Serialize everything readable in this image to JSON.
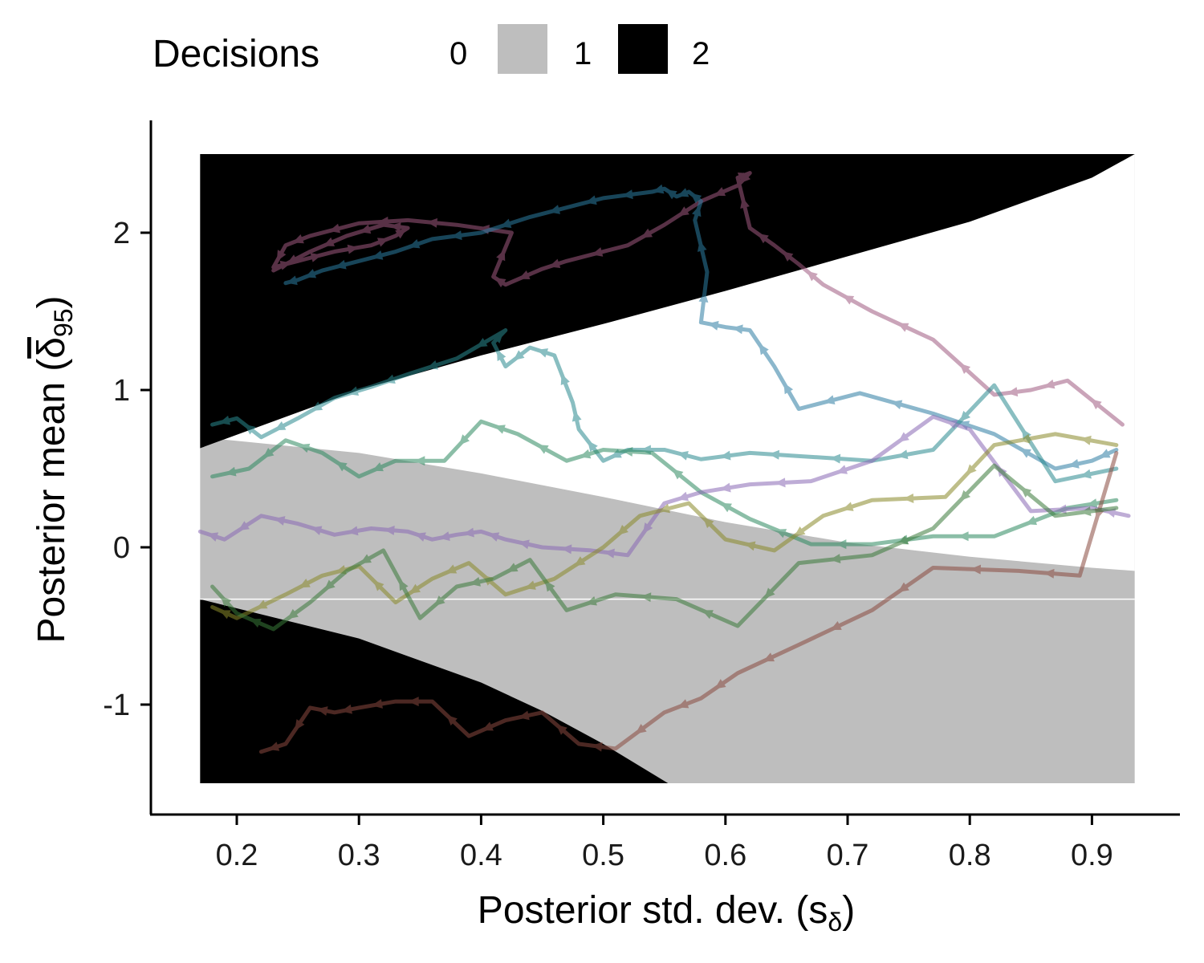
{
  "chart_data": {
    "type": "line",
    "title": "",
    "xlabel": "Posterior std. dev. (s",
    "xlabel_sub": "δ",
    "xlabel_close": ")",
    "ylabel": "Posterior mean (",
    "ylabel_sym": "δ",
    "ylabel_sub": "95",
    "ylabel_close": ")",
    "xlim": [
      0.13,
      0.97
    ],
    "ylim": [
      -1.7,
      2.7
    ],
    "xticks": [
      0.2,
      0.3,
      0.4,
      0.5,
      0.6,
      0.7,
      0.8,
      0.9
    ],
    "xtick_labels": [
      "0.2",
      "0.3",
      "0.4",
      "0.5",
      "0.6",
      "0.7",
      "0.8",
      "0.9"
    ],
    "yticks": [
      -1,
      0,
      1,
      2
    ],
    "ytick_labels": [
      "-1",
      "0",
      "1",
      "2"
    ],
    "legend": {
      "title": "Decisions",
      "placement": "top",
      "entries": [
        {
          "label": "0",
          "color": "#ffffff"
        },
        {
          "label": "1",
          "color": "#bebebe"
        },
        {
          "label": "2",
          "color": "#000000"
        }
      ]
    },
    "decision_regions": {
      "x_range": [
        0.17,
        0.935
      ],
      "y_range": [
        -1.5,
        2.5
      ],
      "upper_boundary": {
        "x": [
          0.17,
          0.3,
          0.4,
          0.5,
          0.6,
          0.7,
          0.8,
          0.9,
          0.935
        ],
        "y": [
          0.63,
          1.0,
          1.22,
          1.42,
          1.63,
          1.85,
          2.07,
          2.35,
          2.5
        ]
      },
      "mid_boundary": {
        "x": [
          0.17,
          0.3,
          0.4,
          0.5,
          0.6,
          0.7,
          0.8,
          0.9,
          0.935
        ],
        "y": [
          0.7,
          0.6,
          0.47,
          0.32,
          0.16,
          0.03,
          -0.06,
          -0.13,
          -0.15
        ]
      },
      "lower_boundary": {
        "x": [
          0.17,
          0.3,
          0.4,
          0.45,
          0.5,
          0.553
        ],
        "y": [
          -0.33,
          -0.58,
          -0.86,
          -1.04,
          -1.25,
          -1.5
        ]
      },
      "thin_line_y": -0.33
    },
    "series": [
      {
        "name": "trajectory-mauve",
        "color": "#a05a80",
        "x": [
          0.925,
          0.88,
          0.85,
          0.82,
          0.77,
          0.72,
          0.68,
          0.66,
          0.64,
          0.62,
          0.61,
          0.62,
          0.61,
          0.58,
          0.55,
          0.52,
          0.47,
          0.45,
          0.42,
          0.41,
          0.425,
          0.38,
          0.34,
          0.3,
          0.26,
          0.24,
          0.23,
          0.25,
          0.28,
          0.31,
          0.33,
          0.34,
          0.32,
          0.29,
          0.26,
          0.23
        ],
        "y": [
          0.78,
          1.06,
          1.0,
          0.97,
          1.32,
          1.5,
          1.67,
          1.8,
          1.92,
          2.03,
          2.35,
          2.38,
          2.3,
          2.2,
          2.05,
          1.92,
          1.82,
          1.77,
          1.67,
          1.72,
          2.0,
          2.05,
          2.08,
          2.06,
          1.98,
          1.92,
          1.78,
          1.82,
          1.88,
          1.92,
          1.98,
          2.03,
          2.05,
          1.98,
          1.88,
          1.76
        ]
      },
      {
        "name": "trajectory-steelblue",
        "color": "#2d7ea3",
        "x": [
          0.92,
          0.9,
          0.87,
          0.82,
          0.77,
          0.71,
          0.66,
          0.64,
          0.62,
          0.6,
          0.58,
          0.585,
          0.575,
          0.58,
          0.57,
          0.56,
          0.55,
          0.54,
          0.5,
          0.48,
          0.44,
          0.4,
          0.36,
          0.33,
          0.3,
          0.27,
          0.25,
          0.24
        ],
        "y": [
          0.62,
          0.55,
          0.5,
          0.72,
          0.85,
          0.98,
          0.88,
          1.15,
          1.38,
          1.4,
          1.43,
          1.75,
          2.08,
          2.2,
          2.26,
          2.23,
          2.28,
          2.26,
          2.22,
          2.18,
          2.1,
          2.0,
          1.96,
          1.88,
          1.82,
          1.76,
          1.7,
          1.68
        ]
      },
      {
        "name": "trajectory-teal",
        "color": "#2a8a90",
        "x": [
          0.92,
          0.87,
          0.82,
          0.77,
          0.72,
          0.66,
          0.62,
          0.58,
          0.55,
          0.52,
          0.5,
          0.48,
          0.475,
          0.46,
          0.44,
          0.42,
          0.41,
          0.42,
          0.38,
          0.34,
          0.31,
          0.28,
          0.25,
          0.22,
          0.2,
          0.18
        ],
        "y": [
          0.5,
          0.42,
          1.03,
          0.62,
          0.55,
          0.58,
          0.6,
          0.56,
          0.62,
          0.62,
          0.55,
          0.75,
          0.92,
          1.22,
          1.27,
          1.15,
          1.3,
          1.38,
          1.2,
          1.1,
          1.02,
          0.95,
          0.82,
          0.7,
          0.82,
          0.78
        ]
      },
      {
        "name": "trajectory-green",
        "color": "#2e8a60",
        "x": [
          0.92,
          0.88,
          0.82,
          0.77,
          0.72,
          0.67,
          0.62,
          0.58,
          0.54,
          0.5,
          0.47,
          0.43,
          0.4,
          0.37,
          0.33,
          0.3,
          0.27,
          0.24,
          0.21,
          0.18
        ],
        "y": [
          0.3,
          0.25,
          0.07,
          0.07,
          0.02,
          0.02,
          0.18,
          0.35,
          0.6,
          0.62,
          0.55,
          0.72,
          0.8,
          0.55,
          0.55,
          0.45,
          0.6,
          0.68,
          0.5,
          0.45
        ]
      },
      {
        "name": "trajectory-lavender",
        "color": "#8a6ab5",
        "x": [
          0.93,
          0.9,
          0.85,
          0.8,
          0.77,
          0.72,
          0.67,
          0.62,
          0.58,
          0.55,
          0.52,
          0.49,
          0.45,
          0.42,
          0.4,
          0.38,
          0.36,
          0.34,
          0.31,
          0.28,
          0.25,
          0.22,
          0.19,
          0.17
        ],
        "y": [
          0.2,
          0.25,
          0.23,
          0.75,
          0.83,
          0.55,
          0.42,
          0.4,
          0.35,
          0.28,
          -0.05,
          -0.02,
          0.0,
          0.05,
          0.1,
          0.08,
          0.05,
          0.1,
          0.12,
          0.08,
          0.15,
          0.2,
          0.05,
          0.1
        ]
      },
      {
        "name": "trajectory-olive",
        "color": "#8a8a2a",
        "x": [
          0.92,
          0.87,
          0.82,
          0.78,
          0.72,
          0.68,
          0.64,
          0.6,
          0.57,
          0.53,
          0.5,
          0.46,
          0.42,
          0.39,
          0.36,
          0.33,
          0.3,
          0.27,
          0.24,
          0.2,
          0.18
        ],
        "y": [
          0.65,
          0.72,
          0.65,
          0.32,
          0.3,
          0.2,
          -0.02,
          0.05,
          0.28,
          0.2,
          0.0,
          -0.2,
          -0.3,
          -0.1,
          -0.2,
          -0.35,
          -0.12,
          -0.18,
          -0.3,
          -0.45,
          -0.38
        ]
      },
      {
        "name": "trajectory-brown",
        "color": "#8a4a40",
        "x": [
          0.92,
          0.89,
          0.84,
          0.77,
          0.72,
          0.66,
          0.61,
          0.58,
          0.55,
          0.51,
          0.48,
          0.45,
          0.42,
          0.39,
          0.36,
          0.33,
          0.3,
          0.28,
          0.26,
          0.24,
          0.22
        ],
        "y": [
          0.6,
          -0.18,
          -0.15,
          -0.13,
          -0.4,
          -0.62,
          -0.8,
          -0.96,
          -1.05,
          -1.28,
          -1.25,
          -1.05,
          -1.1,
          -1.2,
          -0.98,
          -0.98,
          -1.02,
          -1.05,
          -1.02,
          -1.25,
          -1.3
        ]
      },
      {
        "name": "trajectory-darkgreen",
        "color": "#3a7a3a",
        "x": [
          0.92,
          0.87,
          0.82,
          0.77,
          0.72,
          0.66,
          0.61,
          0.56,
          0.51,
          0.47,
          0.44,
          0.41,
          0.38,
          0.35,
          0.32,
          0.29,
          0.26,
          0.23,
          0.2,
          0.18
        ],
        "y": [
          0.25,
          0.2,
          0.52,
          0.12,
          -0.05,
          -0.1,
          -0.5,
          -0.33,
          -0.3,
          -0.4,
          -0.08,
          -0.2,
          -0.25,
          -0.45,
          -0.02,
          -0.15,
          -0.35,
          -0.52,
          -0.42,
          -0.25
        ]
      }
    ]
  }
}
